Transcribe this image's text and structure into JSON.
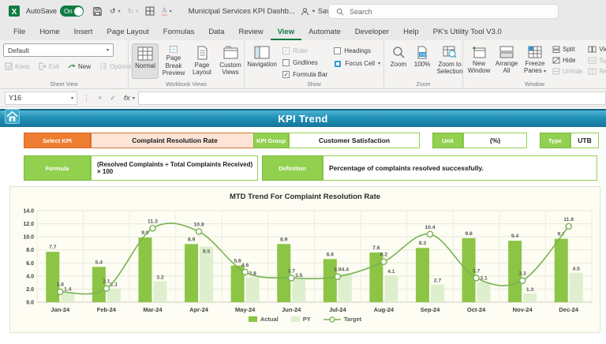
{
  "titlebar": {
    "autosave_label": "AutoSave",
    "autosave_state": "On",
    "doc_title": "Municipal Services KPI Dashb...",
    "saved_label": "Saved",
    "search_placeholder": "Search"
  },
  "ribbon_tabs": [
    "File",
    "Home",
    "Insert",
    "Page Layout",
    "Formulas",
    "Data",
    "Review",
    "View",
    "Automate",
    "Developer",
    "Help",
    "PK's Utility Tool V3.0"
  ],
  "active_tab": "View",
  "ribbon": {
    "sheet_view": {
      "label": "Sheet View",
      "dropdown_value": "Default",
      "keep": "Keep",
      "exit": "Exit",
      "new": "New",
      "options": "Options"
    },
    "workbook_views": {
      "label": "Workbook Views",
      "normal": "Normal",
      "page_break": "Page Break Preview",
      "page_layout": "Page Layout",
      "custom_views": "Custom Views"
    },
    "show": {
      "label": "Show",
      "navigation": "Navigation",
      "checkboxes": [
        {
          "label": "Ruler",
          "checked": true,
          "disabled": true
        },
        {
          "label": "Gridlines",
          "checked": false,
          "disabled": false
        },
        {
          "label": "Formula Bar",
          "checked": true,
          "disabled": false
        },
        {
          "label": "Headings",
          "checked": false,
          "disabled": false
        }
      ],
      "focus_cell": "Focus Cell"
    },
    "zoom": {
      "label": "Zoom",
      "zoom": "Zoom",
      "hundred": "100%",
      "zoom_to_selection": "Zoom to Selection"
    },
    "window": {
      "label": "Window",
      "new_window": "New Window",
      "arrange_all": "Arrange All",
      "freeze_panes": "Freeze Panes",
      "split": "Split",
      "hide": "Hide",
      "unhide": "Unhide",
      "view_side": "View",
      "sync": "Synch",
      "reset": "Reset"
    }
  },
  "formula_bar": {
    "name_box": "Y16",
    "fx_label": "fx",
    "formula_value": ""
  },
  "sheet": {
    "banner_title": "KPI Trend",
    "select_kpi": {
      "label": "Select KPI",
      "value": "Complaint Resolution Rate"
    },
    "kpi_group": {
      "label": "KPI Group",
      "value": "Customer Satisfaction"
    },
    "unit": {
      "label": "Unit",
      "value": "(%)"
    },
    "type": {
      "label": "Type",
      "value": "UTB"
    },
    "formula": {
      "label": "Formula",
      "value": "(Resolved Complaints ÷ Total Complaints Received) × 100"
    },
    "definition": {
      "label": "Definition",
      "value": "Percentage of complaints resolved successfully."
    }
  },
  "chart_data": {
    "type": "bar",
    "title": "MTD Trend For Complaint Resolution Rate",
    "categories": [
      "Jan-24",
      "Feb-24",
      "Mar-24",
      "Apr-24",
      "May-24",
      "Jun-24",
      "Jul-24",
      "Aug-24",
      "Sep-24",
      "Oct-24",
      "Nov-24",
      "Dec-24"
    ],
    "series": [
      {
        "name": "Actual",
        "type": "bar",
        "color": "#8cc445",
        "values": [
          7.7,
          5.4,
          9.9,
          8.9,
          5.6,
          8.9,
          6.6,
          7.6,
          8.3,
          9.8,
          9.4,
          9.7
        ]
      },
      {
        "name": "PY",
        "type": "bar",
        "color": "#ddefcd",
        "values": [
          1.4,
          2.1,
          3.2,
          8.5,
          3.8,
          3.5,
          4.4,
          4.1,
          2.7,
          3.1,
          1.3,
          4.5
        ]
      },
      {
        "name": "Target",
        "type": "line",
        "color": "#79b254",
        "values": [
          1.6,
          2.1,
          11.3,
          10.8,
          4.6,
          3.7,
          3.9,
          6.2,
          10.4,
          3.7,
          3.3,
          11.6
        ]
      }
    ],
    "ylim": [
      0,
      14
    ],
    "ytick_step": 2,
    "ytick_labels": [
      "0.0",
      "2.0",
      "4.0",
      "6.0",
      "8.0",
      "10.0",
      "12.0",
      "14.0"
    ],
    "grid": true,
    "legend_position": "bottom",
    "label_color": "#595959"
  },
  "colors": {
    "excel_green": "#107c41",
    "banner_top": "#4fb3d4",
    "banner_bottom": "#16749a",
    "kpi_label_orange": "#ed7d31",
    "kpi_value_peach": "#fce4d6",
    "green_label": "#92d050",
    "chart_bg": "#fdfdf3"
  },
  "icons": {
    "chevron_down": "▾",
    "undo": "↺",
    "redo": "↻",
    "ellipsis": "⋮",
    "cancel": "×",
    "enter": "✓",
    "dot": "•"
  }
}
